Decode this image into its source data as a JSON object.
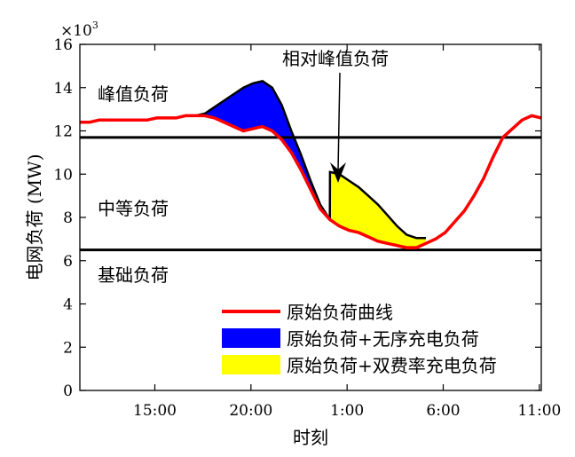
{
  "chart_data": {
    "type": "area",
    "title": "",
    "xlabel": "时刻",
    "ylabel": "电网负荷 (MW)",
    "y_multiplier": "×10",
    "y_multiplier_exp": "3",
    "xlim": [
      11,
      35
    ],
    "ylim": [
      0,
      16
    ],
    "xticks": [
      {
        "value": 14.9,
        "label": "15:00"
      },
      {
        "value": 19.9,
        "label": "20:00"
      },
      {
        "value": 24.9,
        "label": "1:00"
      },
      {
        "value": 29.9,
        "label": "6:00"
      },
      {
        "value": 34.9,
        "label": "11:00"
      }
    ],
    "yticks": [
      0,
      2,
      4,
      6,
      8,
      10,
      12,
      14,
      16
    ],
    "thresholds": [
      11.7,
      6.5
    ],
    "series": [
      {
        "name": "原始负荷曲线",
        "color": "#ff0000",
        "x": [
          11.0,
          11.5,
          12.0,
          12.5,
          13.0,
          13.5,
          14.0,
          14.5,
          15.0,
          15.5,
          16.0,
          16.5,
          17.0,
          17.5,
          18.0,
          18.5,
          19.0,
          19.5,
          20.0,
          20.5,
          21.0,
          21.5,
          22.0,
          22.5,
          23.0,
          23.5,
          24.0,
          24.5,
          25.0,
          25.5,
          26.0,
          26.5,
          27.0,
          27.5,
          28.0,
          28.5,
          29.0,
          29.5,
          30.0,
          30.5,
          31.0,
          31.5,
          32.0,
          32.5,
          33.0,
          33.5,
          34.0,
          34.5,
          35.0
        ],
        "values": [
          12.4,
          12.4,
          12.5,
          12.5,
          12.5,
          12.5,
          12.5,
          12.5,
          12.6,
          12.6,
          12.6,
          12.7,
          12.7,
          12.7,
          12.6,
          12.4,
          12.2,
          12.0,
          12.1,
          12.2,
          12.0,
          11.6,
          11.0,
          10.2,
          9.3,
          8.4,
          7.9,
          7.6,
          7.4,
          7.3,
          7.1,
          6.9,
          6.8,
          6.7,
          6.6,
          6.6,
          6.8,
          7.0,
          7.3,
          7.8,
          8.3,
          9.0,
          9.8,
          10.8,
          11.7,
          12.1,
          12.5,
          12.7,
          12.6
        ]
      },
      {
        "name": "原始负荷+无序充电负荷",
        "color": "#0000ff",
        "x": [
          17.0,
          17.5,
          18.0,
          18.5,
          19.0,
          19.5,
          20.0,
          20.5,
          21.0,
          21.5,
          22.0,
          22.5,
          23.0,
          23.5,
          24.0
        ],
        "values": [
          12.7,
          12.8,
          13.1,
          13.4,
          13.7,
          14.0,
          14.2,
          14.3,
          14.0,
          13.2,
          12.0,
          10.9,
          9.7,
          8.6,
          7.9
        ]
      },
      {
        "name": "原始负荷+双费率充电负荷",
        "color": "#ffff00",
        "x": [
          24.0,
          24.01,
          24.5,
          25.0,
          25.5,
          26.0,
          26.5,
          27.0,
          27.5,
          28.0,
          28.5,
          29.0
        ],
        "values": [
          7.9,
          10.1,
          10.0,
          9.7,
          9.4,
          9.0,
          8.6,
          8.1,
          7.6,
          7.2,
          7.05,
          7.05
        ]
      }
    ],
    "annotations": [
      "峰值负荷",
      "中等负荷",
      "基础负荷",
      "相对峰值负荷"
    ],
    "legend_position": "bottom-right"
  }
}
